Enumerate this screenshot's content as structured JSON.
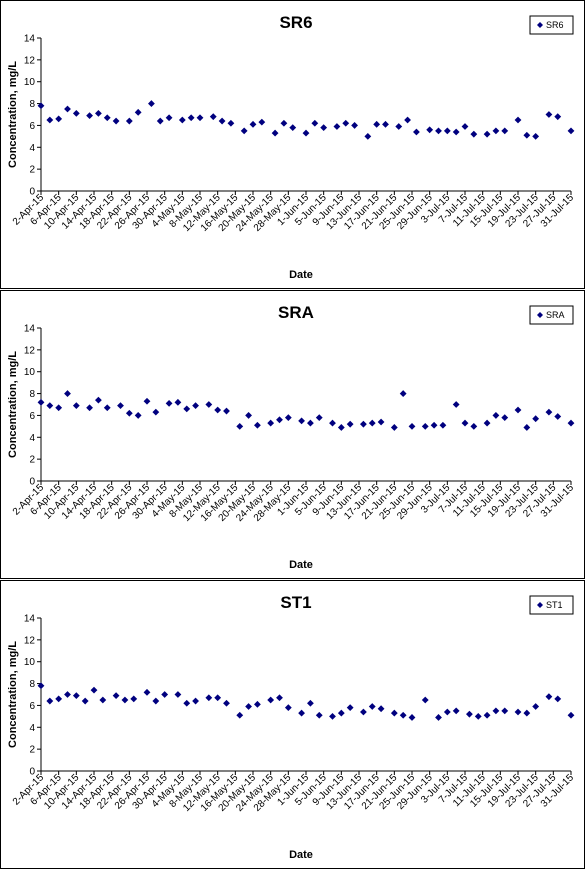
{
  "chart_data": [
    {
      "type": "scatter",
      "title": "SR6",
      "xlabel": "Date",
      "ylabel": "Concentration, mg/L",
      "ylim": [
        0,
        14
      ],
      "yticks": [
        "0",
        "2",
        "4",
        "6",
        "8",
        "10",
        "12",
        "14"
      ],
      "xticks": [
        "2-Apr-15",
        "6-Apr-15",
        "10-Apr-15",
        "14-Apr-15",
        "18-Apr-15",
        "22-Apr-15",
        "26-Apr-15",
        "30-Apr-15",
        "4-May-15",
        "8-May-15",
        "12-May-15",
        "16-May-15",
        "20-May-15",
        "24-May-15",
        "28-May-15",
        "1-Jun-15",
        "5-Jun-15",
        "9-Jun-15",
        "13-Jun-15",
        "17-Jun-15",
        "21-Jun-15",
        "25-Jun-15",
        "29-Jun-15",
        "3-Jul-15",
        "7-Jul-15",
        "11-Jul-15",
        "15-Jul-15",
        "19-Jul-15",
        "23-Jul-15",
        "27-Jul-15",
        "31-Jul-15"
      ],
      "legend": "top-right",
      "marker_color": "#00007f",
      "series": [
        {
          "name": "SR6",
          "points": [
            [
              "2-Apr-15",
              7.8
            ],
            [
              "4-Apr-15",
              6.5
            ],
            [
              "6-Apr-15",
              6.6
            ],
            [
              "8-Apr-15",
              7.5
            ],
            [
              "10-Apr-15",
              7.1
            ],
            [
              "13-Apr-15",
              6.9
            ],
            [
              "15-Apr-15",
              7.1
            ],
            [
              "17-Apr-15",
              6.7
            ],
            [
              "19-Apr-15",
              6.4
            ],
            [
              "22-Apr-15",
              6.4
            ],
            [
              "24-Apr-15",
              7.2
            ],
            [
              "27-Apr-15",
              8.0
            ],
            [
              "29-Apr-15",
              6.4
            ],
            [
              "1-May-15",
              6.7
            ],
            [
              "4-May-15",
              6.5
            ],
            [
              "6-May-15",
              6.7
            ],
            [
              "8-May-15",
              6.7
            ],
            [
              "11-May-15",
              6.8
            ],
            [
              "13-May-15",
              6.4
            ],
            [
              "15-May-15",
              6.2
            ],
            [
              "18-May-15",
              5.5
            ],
            [
              "20-May-15",
              6.1
            ],
            [
              "22-May-15",
              6.3
            ],
            [
              "25-May-15",
              5.3
            ],
            [
              "27-May-15",
              6.2
            ],
            [
              "29-May-15",
              5.8
            ],
            [
              "1-Jun-15",
              5.3
            ],
            [
              "3-Jun-15",
              6.2
            ],
            [
              "5-Jun-15",
              5.8
            ],
            [
              "8-Jun-15",
              5.9
            ],
            [
              "10-Jun-15",
              6.2
            ],
            [
              "12-Jun-15",
              6.0
            ],
            [
              "15-Jun-15",
              5.0
            ],
            [
              "17-Jun-15",
              6.1
            ],
            [
              "19-Jun-15",
              6.1
            ],
            [
              "22-Jun-15",
              5.9
            ],
            [
              "24-Jun-15",
              6.5
            ],
            [
              "26-Jun-15",
              5.4
            ],
            [
              "29-Jun-15",
              5.6
            ],
            [
              "1-Jul-15",
              5.5
            ],
            [
              "3-Jul-15",
              5.5
            ],
            [
              "5-Jul-15",
              5.4
            ],
            [
              "7-Jul-15",
              5.9
            ],
            [
              "9-Jul-15",
              5.2
            ],
            [
              "12-Jul-15",
              5.2
            ],
            [
              "14-Jul-15",
              5.5
            ],
            [
              "16-Jul-15",
              5.5
            ],
            [
              "19-Jul-15",
              6.5
            ],
            [
              "21-Jul-15",
              5.1
            ],
            [
              "23-Jul-15",
              5.0
            ],
            [
              "26-Jul-15",
              7.0
            ],
            [
              "28-Jul-15",
              6.8
            ],
            [
              "31-Jul-15",
              5.5
            ]
          ]
        }
      ]
    },
    {
      "type": "scatter",
      "title": "SRA",
      "xlabel": "Date",
      "ylabel": "Concentration, mg/L",
      "ylim": [
        0,
        14
      ],
      "yticks": [
        "0",
        "2",
        "4",
        "6",
        "8",
        "10",
        "12",
        "14"
      ],
      "xticks": [
        "2-Apr-15",
        "6-Apr-15",
        "10-Apr-15",
        "14-Apr-15",
        "18-Apr-15",
        "22-Apr-15",
        "26-Apr-15",
        "30-Apr-15",
        "4-May-15",
        "8-May-15",
        "12-May-15",
        "16-May-15",
        "20-May-15",
        "24-May-15",
        "28-May-15",
        "1-Jun-15",
        "5-Jun-15",
        "9-Jun-15",
        "13-Jun-15",
        "17-Jun-15",
        "21-Jun-15",
        "25-Jun-15",
        "29-Jun-15",
        "3-Jul-15",
        "7-Jul-15",
        "11-Jul-15",
        "15-Jul-15",
        "19-Jul-15",
        "23-Jul-15",
        "27-Jul-15",
        "31-Jul-15"
      ],
      "legend": "top-right",
      "marker_color": "#00007f",
      "series": [
        {
          "name": "SRA",
          "points": [
            [
              "2-Apr-15",
              7.2
            ],
            [
              "4-Apr-15",
              6.9
            ],
            [
              "6-Apr-15",
              6.7
            ],
            [
              "8-Apr-15",
              8.0
            ],
            [
              "10-Apr-15",
              6.9
            ],
            [
              "13-Apr-15",
              6.7
            ],
            [
              "15-Apr-15",
              7.4
            ],
            [
              "17-Apr-15",
              6.7
            ],
            [
              "20-Apr-15",
              6.9
            ],
            [
              "22-Apr-15",
              6.2
            ],
            [
              "24-Apr-15",
              6.0
            ],
            [
              "26-Apr-15",
              7.3
            ],
            [
              "28-Apr-15",
              6.3
            ],
            [
              "1-May-15",
              7.1
            ],
            [
              "3-May-15",
              7.2
            ],
            [
              "5-May-15",
              6.6
            ],
            [
              "7-May-15",
              6.9
            ],
            [
              "10-May-15",
              7.0
            ],
            [
              "12-May-15",
              6.5
            ],
            [
              "14-May-15",
              6.4
            ],
            [
              "17-May-15",
              5.0
            ],
            [
              "19-May-15",
              6.0
            ],
            [
              "21-May-15",
              5.1
            ],
            [
              "24-May-15",
              5.3
            ],
            [
              "26-May-15",
              5.6
            ],
            [
              "28-May-15",
              5.8
            ],
            [
              "31-May-15",
              5.5
            ],
            [
              "2-Jun-15",
              5.3
            ],
            [
              "4-Jun-15",
              5.8
            ],
            [
              "7-Jun-15",
              5.3
            ],
            [
              "9-Jun-15",
              4.9
            ],
            [
              "11-Jun-15",
              5.2
            ],
            [
              "14-Jun-15",
              5.2
            ],
            [
              "16-Jun-15",
              5.3
            ],
            [
              "18-Jun-15",
              5.4
            ],
            [
              "21-Jun-15",
              4.9
            ],
            [
              "23-Jun-15",
              8.0
            ],
            [
              "25-Jun-15",
              5.0
            ],
            [
              "28-Jun-15",
              5.0
            ],
            [
              "30-Jun-15",
              5.1
            ],
            [
              "2-Jul-15",
              5.1
            ],
            [
              "5-Jul-15",
              7.0
            ],
            [
              "7-Jul-15",
              5.3
            ],
            [
              "9-Jul-15",
              5.0
            ],
            [
              "12-Jul-15",
              5.3
            ],
            [
              "14-Jul-15",
              6.0
            ],
            [
              "16-Jul-15",
              5.8
            ],
            [
              "19-Jul-15",
              6.5
            ],
            [
              "21-Jul-15",
              4.9
            ],
            [
              "23-Jul-15",
              5.7
            ],
            [
              "26-Jul-15",
              6.3
            ],
            [
              "28-Jul-15",
              5.9
            ],
            [
              "31-Jul-15",
              5.3
            ]
          ]
        }
      ]
    },
    {
      "type": "scatter",
      "title": "ST1",
      "xlabel": "Date",
      "ylabel": "Concentration, mg/L",
      "ylim": [
        0,
        14
      ],
      "yticks": [
        "0",
        "2",
        "4",
        "6",
        "8",
        "10",
        "12",
        "14"
      ],
      "xticks": [
        "2-Apr-15",
        "6-Apr-15",
        "10-Apr-15",
        "14-Apr-15",
        "18-Apr-15",
        "22-Apr-15",
        "26-Apr-15",
        "30-Apr-15",
        "4-May-15",
        "8-May-15",
        "12-May-15",
        "16-May-15",
        "20-May-15",
        "24-May-15",
        "28-May-15",
        "1-Jun-15",
        "5-Jun-15",
        "9-Jun-15",
        "13-Jun-15",
        "17-Jun-15",
        "21-Jun-15",
        "25-Jun-15",
        "29-Jun-15",
        "3-Jul-15",
        "7-Jul-15",
        "11-Jul-15",
        "15-Jul-15",
        "19-Jul-15",
        "23-Jul-15",
        "27-Jul-15",
        "31-Jul-15"
      ],
      "legend": "top-right",
      "marker_color": "#00007f",
      "series": [
        {
          "name": "ST1",
          "points": [
            [
              "2-Apr-15",
              7.8
            ],
            [
              "4-Apr-15",
              6.4
            ],
            [
              "6-Apr-15",
              6.6
            ],
            [
              "8-Apr-15",
              7.0
            ],
            [
              "10-Apr-15",
              6.9
            ],
            [
              "12-Apr-15",
              6.4
            ],
            [
              "14-Apr-15",
              7.4
            ],
            [
              "16-Apr-15",
              6.5
            ],
            [
              "19-Apr-15",
              6.9
            ],
            [
              "21-Apr-15",
              6.5
            ],
            [
              "23-Apr-15",
              6.6
            ],
            [
              "26-Apr-15",
              7.2
            ],
            [
              "28-Apr-15",
              6.4
            ],
            [
              "30-Apr-15",
              7.0
            ],
            [
              "3-May-15",
              7.0
            ],
            [
              "5-May-15",
              6.2
            ],
            [
              "7-May-15",
              6.4
            ],
            [
              "10-May-15",
              6.7
            ],
            [
              "12-May-15",
              6.7
            ],
            [
              "14-May-15",
              6.2
            ],
            [
              "17-May-15",
              5.1
            ],
            [
              "19-May-15",
              5.9
            ],
            [
              "21-May-15",
              6.1
            ],
            [
              "24-May-15",
              6.5
            ],
            [
              "26-May-15",
              6.7
            ],
            [
              "28-May-15",
              5.8
            ],
            [
              "31-May-15",
              5.3
            ],
            [
              "2-Jun-15",
              6.2
            ],
            [
              "4-Jun-15",
              5.1
            ],
            [
              "7-Jun-15",
              5.0
            ],
            [
              "9-Jun-15",
              5.3
            ],
            [
              "11-Jun-15",
              5.8
            ],
            [
              "14-Jun-15",
              5.4
            ],
            [
              "16-Jun-15",
              5.9
            ],
            [
              "18-Jun-15",
              5.7
            ],
            [
              "21-Jun-15",
              5.3
            ],
            [
              "23-Jun-15",
              5.1
            ],
            [
              "25-Jun-15",
              4.9
            ],
            [
              "28-Jun-15",
              6.5
            ],
            [
              "1-Jul-15",
              4.9
            ],
            [
              "3-Jul-15",
              5.4
            ],
            [
              "5-Jul-15",
              5.5
            ],
            [
              "8-Jul-15",
              5.2
            ],
            [
              "10-Jul-15",
              5.0
            ],
            [
              "12-Jul-15",
              5.1
            ],
            [
              "14-Jul-15",
              5.5
            ],
            [
              "16-Jul-15",
              5.5
            ],
            [
              "19-Jul-15",
              5.4
            ],
            [
              "21-Jul-15",
              5.3
            ],
            [
              "23-Jul-15",
              5.9
            ],
            [
              "26-Jul-15",
              6.8
            ],
            [
              "28-Jul-15",
              6.6
            ],
            [
              "31-Jul-15",
              5.1
            ]
          ]
        }
      ]
    }
  ]
}
